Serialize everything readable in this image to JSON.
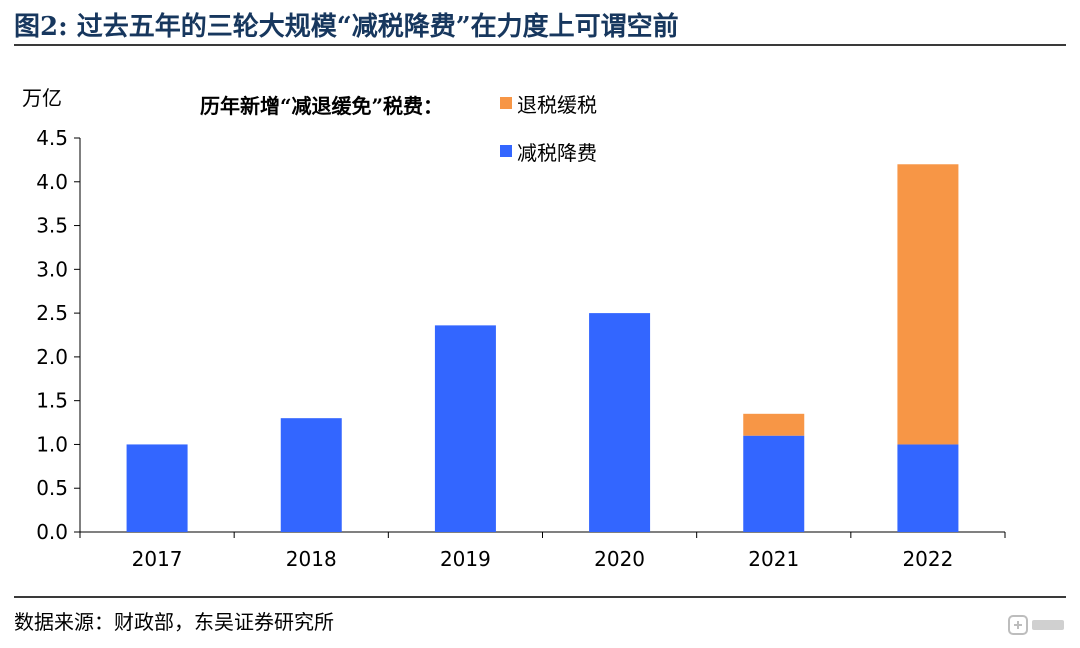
{
  "figure": {
    "title": "图2: 过去五年的三轮大规模“减税降费”在力度上可谓空前",
    "source": "数据来源：财政部，东吴证券研究所",
    "watermark_icon": "gelonghui-logo-icon"
  },
  "chart_data": {
    "type": "bar",
    "stacked": true,
    "title": "历年新增“减退缓免”税费：",
    "ylabel": "万亿",
    "xlabel": "",
    "categories": [
      "2017",
      "2018",
      "2019",
      "2020",
      "2021",
      "2022"
    ],
    "series": [
      {
        "name": "减税降费",
        "color": "#3366ff",
        "values": [
          1.0,
          1.3,
          2.36,
          2.5,
          1.1,
          1.0
        ]
      },
      {
        "name": "退税缓税",
        "color": "#f79646",
        "values": [
          0,
          0,
          0,
          0,
          0.25,
          3.2
        ]
      }
    ],
    "ylim": [
      0,
      4.5
    ],
    "yticks": [
      "0.0",
      "0.5",
      "1.0",
      "1.5",
      "2.0",
      "2.5",
      "3.0",
      "3.5",
      "4.0",
      "4.5"
    ],
    "grid": false,
    "legend_position": "top-center",
    "legend_order": [
      "退税缓税",
      "减税降费"
    ]
  }
}
